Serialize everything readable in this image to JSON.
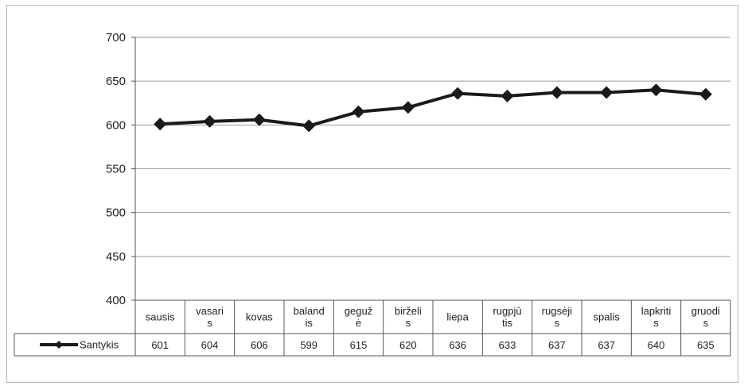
{
  "chart_data": {
    "type": "line",
    "categories": [
      "sausis",
      "vasaris",
      "kovas",
      "balandis",
      "gegužė",
      "birželis",
      "liepa",
      "rugpjūtis",
      "rugsėjis",
      "spalis",
      "lapkritis",
      "gruodis"
    ],
    "category_lines": [
      [
        "sausis"
      ],
      [
        "vasari",
        "s"
      ],
      [
        "kovas"
      ],
      [
        "baland",
        "is"
      ],
      [
        "geguž",
        "ė"
      ],
      [
        "birželi",
        "s"
      ],
      [
        "liepa"
      ],
      [
        "rugpjū",
        "tis"
      ],
      [
        "rugsėji",
        "s"
      ],
      [
        "spalis"
      ],
      [
        "lapkriti",
        "s"
      ],
      [
        "gruodi",
        "s"
      ]
    ],
    "series": [
      {
        "name": "Santykis",
        "values": [
          601,
          604,
          606,
          599,
          615,
          620,
          636,
          633,
          637,
          637,
          640,
          635
        ]
      }
    ],
    "y_ticks": [
      400,
      450,
      500,
      550,
      600,
      650,
      700
    ],
    "ylim": [
      400,
      700
    ],
    "grid": true,
    "legend": "data-table",
    "marker": "diamond",
    "line_color": "#1a1a1a"
  }
}
